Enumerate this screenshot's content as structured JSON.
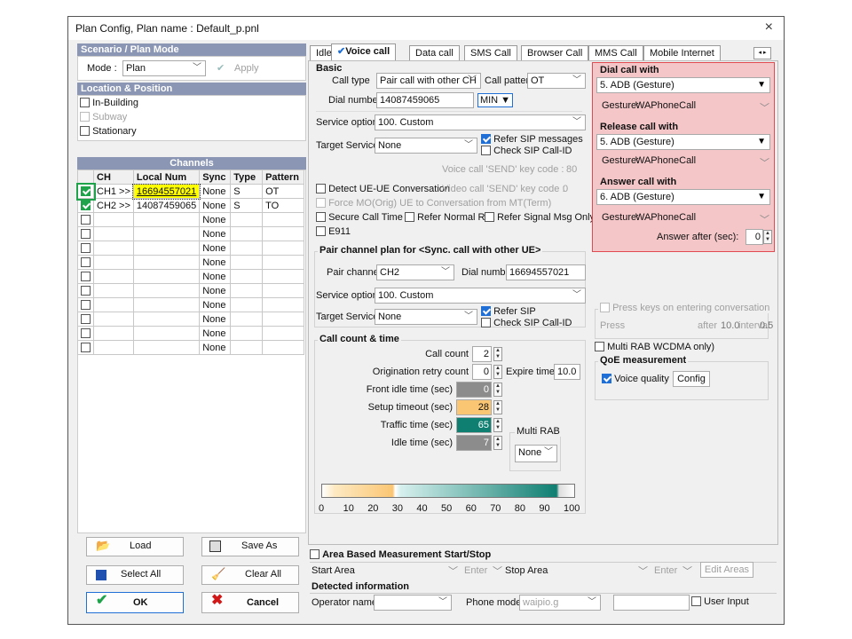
{
  "window": {
    "title": "Plan Config, Plan name : Default_p.pnl",
    "close": "×"
  },
  "left": {
    "scenario_header": "Scenario / Plan Mode",
    "mode_label": "Mode :",
    "mode_value": "Plan",
    "apply": "Apply",
    "location_header": "Location & Position",
    "location_items": [
      {
        "label": "In-Building",
        "checked": false,
        "enabled": true
      },
      {
        "label": "Subway",
        "checked": false,
        "enabled": false
      },
      {
        "label": "Stationary",
        "checked": false,
        "enabled": true
      }
    ],
    "channels_header": "Channels",
    "columns": [
      "CH",
      "Local Num",
      "Sync",
      "Type",
      "Pattern"
    ],
    "rows": [
      {
        "checked": true,
        "ch": "CH1 >>",
        "num": "16694557021",
        "sync": "None",
        "type": "S",
        "pattern": "OT"
      },
      {
        "checked": true,
        "ch": "CH2 >>",
        "num": "14087459065",
        "sync": "None",
        "type": "S",
        "pattern": "TO"
      },
      {
        "checked": false,
        "ch": "",
        "num": "",
        "sync": "None",
        "type": "",
        "pattern": ""
      },
      {
        "checked": false,
        "ch": "",
        "num": "",
        "sync": "None",
        "type": "",
        "pattern": ""
      },
      {
        "checked": false,
        "ch": "",
        "num": "",
        "sync": "None",
        "type": "",
        "pattern": ""
      },
      {
        "checked": false,
        "ch": "",
        "num": "",
        "sync": "None",
        "type": "",
        "pattern": ""
      },
      {
        "checked": false,
        "ch": "",
        "num": "",
        "sync": "None",
        "type": "",
        "pattern": ""
      },
      {
        "checked": false,
        "ch": "",
        "num": "",
        "sync": "None",
        "type": "",
        "pattern": ""
      },
      {
        "checked": false,
        "ch": "",
        "num": "",
        "sync": "None",
        "type": "",
        "pattern": ""
      },
      {
        "checked": false,
        "ch": "",
        "num": "",
        "sync": "None",
        "type": "",
        "pattern": ""
      },
      {
        "checked": false,
        "ch": "",
        "num": "",
        "sync": "None",
        "type": "",
        "pattern": ""
      },
      {
        "checked": false,
        "ch": "",
        "num": "",
        "sync": "None",
        "type": "",
        "pattern": ""
      }
    ],
    "buttons": {
      "load": "Load",
      "save_as": "Save As",
      "select_all": "Select All",
      "clear_all": "Clear All",
      "ok": "OK",
      "cancel": "Cancel"
    }
  },
  "tabs": [
    "Idle",
    "Voice call",
    "Data call",
    "SMS Call",
    "Browser Call",
    "MMS Call",
    "Mobile Internet"
  ],
  "active_tab": "Voice call",
  "basic": {
    "title": "Basic",
    "call_type_label": "Call type",
    "call_type": "Pair call with other CH",
    "call_pattern_label": "Call pattern",
    "call_pattern": "OT",
    "dial_number_label": "Dial number",
    "dial_number": "14087459065",
    "min_button": "MIN ▼",
    "service_option_label": "Service option",
    "service_option": "100. Custom",
    "target_service_label": "Target Service",
    "target_service": "None",
    "refer_sip": "Refer SIP messages",
    "check_sip": "Check SIP Call-ID",
    "send_key": "Voice call 'SEND' key code :",
    "send_key_value": "80",
    "detect_ue": "Detect UE-UE Conversation",
    "video_send_key": "Video call 'SEND' key code :",
    "video_send_key_value": "0",
    "force_mo": "Force MO(Orig) UE to Conversation from MT(Term)",
    "secure_call": "Secure Call Time",
    "refer_normal": "Refer Normal Rel.",
    "refer_signal": "Refer Signal Msg Only",
    "e911": "E911"
  },
  "pair": {
    "title": "Pair channel plan for <Sync. call with other UE>",
    "pair_channel_label": "Pair channel",
    "pair_channel": "CH2",
    "dial_number_label": "Dial number",
    "dial_number": "16694557021",
    "service_option_label": "Service option",
    "service_option": "100. Custom",
    "target_service_label": "Target Service",
    "target_service": "None",
    "refer_sip": "Refer SIP",
    "check_sip": "Check SIP Call-ID"
  },
  "count": {
    "title": "Call count & time",
    "call_count_label": "Call count",
    "call_count": "2",
    "retry_label": "Origination retry count",
    "retry": "0",
    "expire_label": "Expire time",
    "expire": "10.0",
    "front_idle_label": "Front idle time (sec)",
    "front_idle": "0",
    "setup_label": "Setup timeout (sec)",
    "setup": "28",
    "traffic_label": "Traffic time (sec)",
    "traffic": "65",
    "idle_label": "Idle time (sec)",
    "idle": "7",
    "multi_rab_label": "Multi RAB",
    "multi_rab": "None",
    "scale": [
      "0",
      "10",
      "20",
      "30",
      "40",
      "50",
      "60",
      "70",
      "80",
      "90",
      "100"
    ]
  },
  "gesture": {
    "dial_title": "Dial call with",
    "dial_value": "5. ADB (Gesture)",
    "dial_gesture_label": "Gesture:",
    "dial_gesture": "WAPhoneCall",
    "release_title": "Release call with",
    "release_value": "5. ADB (Gesture)",
    "release_gesture_label": "Gesture:",
    "release_gesture": "WAPhoneCall",
    "answer_title": "Answer call with",
    "answer_value": "6. ADB (Gesture)",
    "answer_gesture_label": "Gesture:",
    "answer_gesture": "WAPhoneCall",
    "answer_after_label": "Answer after (sec):",
    "answer_after": "0"
  },
  "keys": {
    "press_keys": "Press keys on entering conversation",
    "press": "Press",
    "after_label": "after",
    "after": "10.0",
    "interval_label": "interval",
    "interval": "0.5",
    "multi_rab_wcdma": "Multi RAB WCDMA only)",
    "qoe_title": "QoE measurement",
    "voice_quality": "Voice quality",
    "config": "Config"
  },
  "area": {
    "title": "Area Based Measurement Start/Stop",
    "start_area": "Start Area",
    "enter1": "Enter",
    "stop_area": "Stop Area",
    "enter2": "Enter",
    "edit_areas": "Edit Areas"
  },
  "detected": {
    "title": "Detected information",
    "operator_label": "Operator name",
    "phone_model_label": "Phone model",
    "phone_model": "waipio.g",
    "user_input": "User Input"
  }
}
